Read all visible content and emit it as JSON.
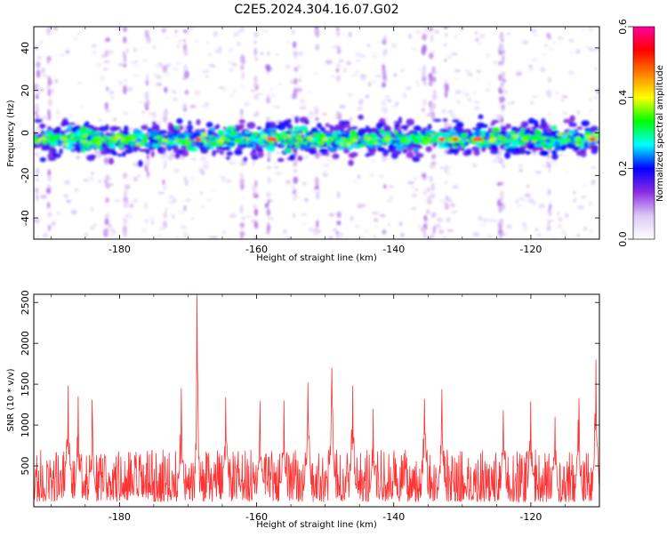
{
  "title": "C2E5.2024.304.16.07.G02",
  "chart_data": [
    {
      "type": "heatmap",
      "xlabel": "Height of straight line (km)",
      "ylabel": "Frequency (Hz)",
      "xlim": [
        -192.5,
        -110
      ],
      "ylim": [
        -50,
        50
      ],
      "xticks": [
        -180,
        -160,
        -140,
        -120
      ],
      "yticks": [
        -40,
        -20,
        0,
        20,
        40
      ],
      "colorbar": {
        "label": "Normalized spectral amplitude",
        "range": [
          0.0,
          0.6
        ],
        "ticks": [
          "0.0",
          "0.2",
          "0.4",
          "0.6"
        ],
        "colors": [
          "#ffffff",
          "#dcc8f5",
          "#8a2be2",
          "#0000ff",
          "#00ffff",
          "#00ff00",
          "#ffff00",
          "#ff8000",
          "#ff0000",
          "#ff00a0"
        ]
      },
      "band": {
        "center_hz": -3,
        "halfwidth_hz": 7
      },
      "hotspots_x": [
        -168.5,
        -158,
        -157.5,
        -133,
        -131,
        -128,
        -127.5,
        -111
      ],
      "grid": false
    },
    {
      "type": "line",
      "xlabel": "Height of straight line (km)",
      "ylabel": "SNR (10 * v/v)",
      "xlim": [
        -192.5,
        -110
      ],
      "ylim": [
        0,
        2600
      ],
      "xticks": [
        -180,
        -160,
        -140,
        -120
      ],
      "yticks": [
        500,
        1000,
        1500,
        2000,
        2500
      ],
      "color": "#ff3333",
      "peaks": [
        {
          "x": -187.5,
          "y": 1480
        },
        {
          "x": -186.0,
          "y": 1350
        },
        {
          "x": -184.0,
          "y": 1310
        },
        {
          "x": -171.0,
          "y": 1450
        },
        {
          "x": -168.7,
          "y": 2600
        },
        {
          "x": -164.5,
          "y": 1340
        },
        {
          "x": -159.5,
          "y": 1290
        },
        {
          "x": -156.0,
          "y": 1300
        },
        {
          "x": -152.5,
          "y": 1520
        },
        {
          "x": -149.0,
          "y": 1700
        },
        {
          "x": -146.0,
          "y": 1480
        },
        {
          "x": -143.0,
          "y": 1200
        },
        {
          "x": -135.5,
          "y": 1320
        },
        {
          "x": -133.0,
          "y": 1440
        },
        {
          "x": -124.0,
          "y": 1180
        },
        {
          "x": -120.0,
          "y": 1290
        },
        {
          "x": -116.5,
          "y": 1100
        },
        {
          "x": -113.0,
          "y": 1330
        },
        {
          "x": -110.5,
          "y": 1800
        }
      ],
      "baseline_range": [
        60,
        700
      ],
      "grid": false
    }
  ]
}
